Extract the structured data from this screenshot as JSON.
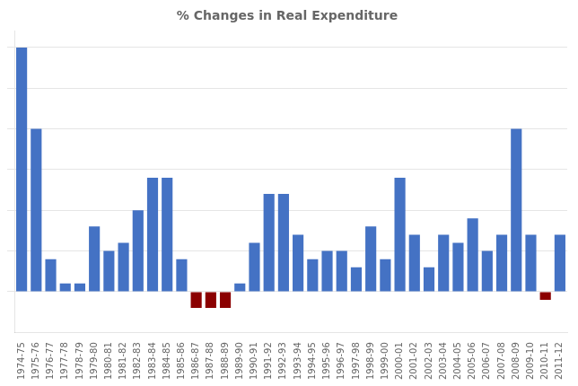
{
  "chart_data": {
    "type": "bar",
    "title": "% Changes in Real Expenditure",
    "categories": [
      "1974-75",
      "1975-76",
      "1976-77",
      "1977-78",
      "1978-79",
      "1979-80",
      "1980-81",
      "1981-82",
      "1982-83",
      "1983-84",
      "1984-85",
      "1985-86",
      "1986-87",
      "1987-88",
      "1988-89",
      "1989-90",
      "1990-91",
      "1991-92",
      "1992-93",
      "1993-94",
      "1994-95",
      "1995-96",
      "1996-97",
      "1997-98",
      "1998-99",
      "1999-00",
      "2000-01",
      "2001-02",
      "2002-03",
      "2003-04",
      "2004-05",
      "2005-06",
      "2006-07",
      "2007-08",
      "2008-09",
      "2009-10",
      "2010-11",
      "2011-12"
    ],
    "values": [
      30,
      20,
      4,
      1,
      1,
      8,
      5,
      6,
      10,
      14,
      14,
      4,
      -2,
      -2,
      -2,
      1,
      6,
      12,
      12,
      7,
      4,
      5,
      5,
      3,
      8,
      4,
      14,
      7,
      3,
      7,
      6,
      9,
      5,
      7,
      20,
      7,
      -1,
      7
    ],
    "colors": [
      "#4472C4",
      "#4472C4",
      "#4472C4",
      "#4472C4",
      "#4472C4",
      "#4472C4",
      "#4472C4",
      "#4472C4",
      "#4472C4",
      "#4472C4",
      "#4472C4",
      "#4472C4",
      "#8B0000",
      "#8B0000",
      "#8B0000",
      "#4472C4",
      "#4472C4",
      "#4472C4",
      "#4472C4",
      "#4472C4",
      "#4472C4",
      "#4472C4",
      "#4472C4",
      "#4472C4",
      "#4472C4",
      "#4472C4",
      "#4472C4",
      "#4472C4",
      "#4472C4",
      "#4472C4",
      "#4472C4",
      "#4472C4",
      "#4472C4",
      "#4472C4",
      "#4472C4",
      "#4472C4",
      "#8B0000",
      "#4472C4"
    ],
    "ylim": [
      -5,
      32
    ],
    "yticks": [
      0,
      5,
      10,
      15,
      20,
      25,
      30
    ],
    "grid": true,
    "tick_labels": "x"
  }
}
